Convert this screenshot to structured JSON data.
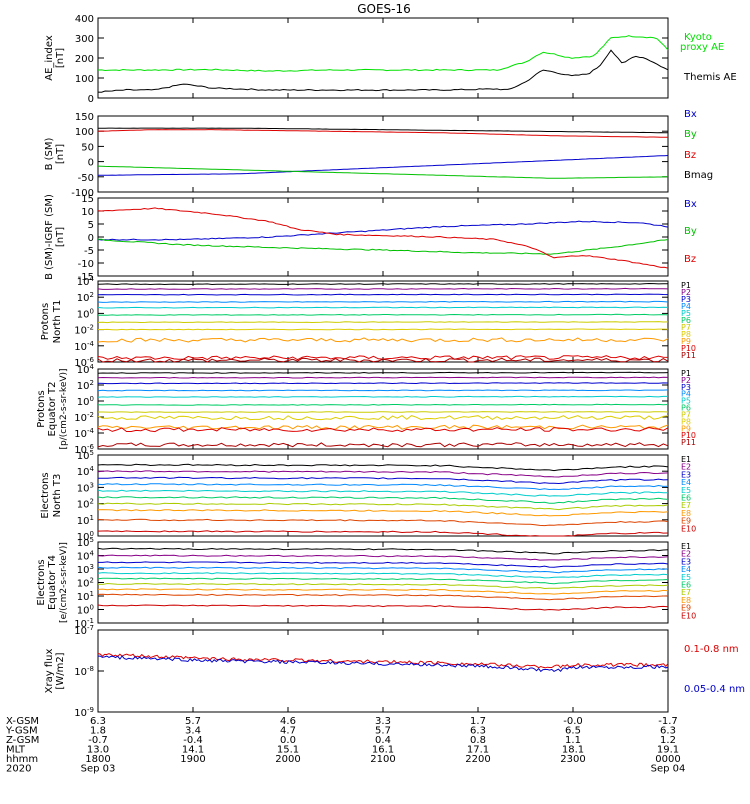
{
  "chart_data": {
    "type": "line",
    "title": "GOES-16",
    "x": [
      1800,
      1900,
      2000,
      2100,
      2200,
      2300,
      0
    ],
    "panels": [
      {
        "ylabel": "AE_index [nT]",
        "ylim": [
          0,
          400
        ],
        "scale": "linear",
        "yticks": [
          "0",
          "100",
          "200",
          "300",
          "400"
        ],
        "series": [
          {
            "name": "Kyoto proxy AE",
            "color": "#00e000",
            "values": [
              [
                0,
                140
              ],
              [
                0.1,
                140
              ],
              [
                0.2,
                142
              ],
              [
                0.3,
                135
              ],
              [
                0.4,
                140
              ],
              [
                0.5,
                140
              ],
              [
                0.6,
                140
              ],
              [
                0.7,
                140
              ],
              [
                0.75,
                180
              ],
              [
                0.78,
                230
              ],
              [
                0.8,
                220
              ],
              [
                0.83,
                200
              ],
              [
                0.87,
                210
              ],
              [
                0.9,
                300
              ],
              [
                0.93,
                310
              ],
              [
                0.96,
                305
              ],
              [
                0.98,
                300
              ],
              [
                1,
                240
              ]
            ]
          },
          {
            "name": "Themis AE",
            "color": "#000000",
            "values": [
              [
                0,
                30
              ],
              [
                0.05,
                40
              ],
              [
                0.1,
                40
              ],
              [
                0.15,
                70
              ],
              [
                0.2,
                50
              ],
              [
                0.3,
                40
              ],
              [
                0.4,
                40
              ],
              [
                0.5,
                40
              ],
              [
                0.6,
                40
              ],
              [
                0.7,
                45
              ],
              [
                0.72,
                40
              ],
              [
                0.75,
                80
              ],
              [
                0.78,
                140
              ],
              [
                0.8,
                130
              ],
              [
                0.83,
                110
              ],
              [
                0.86,
                120
              ],
              [
                0.88,
                160
              ],
              [
                0.9,
                240
              ],
              [
                0.92,
                170
              ],
              [
                0.94,
                210
              ],
              [
                0.96,
                200
              ],
              [
                0.98,
                170
              ],
              [
                1,
                140
              ]
            ]
          }
        ]
      },
      {
        "ylabel": "B (SM) [nT]",
        "ylim": [
          -100,
          150
        ],
        "scale": "linear",
        "yticks": [
          "-100",
          "-50",
          "0",
          "50",
          "100",
          "150"
        ],
        "series": [
          {
            "name": "Bx",
            "color": "#0000cc",
            "values": [
              [
                0,
                -45
              ],
              [
                0.25,
                -40
              ],
              [
                0.5,
                -20
              ],
              [
                0.75,
                0
              ],
              [
                1,
                20
              ]
            ]
          },
          {
            "name": "By",
            "color": "#00c000",
            "values": [
              [
                0,
                -15
              ],
              [
                0.2,
                -25
              ],
              [
                0.4,
                -35
              ],
              [
                0.6,
                -45
              ],
              [
                0.8,
                -55
              ],
              [
                1,
                -50
              ]
            ]
          },
          {
            "name": "Bz",
            "color": "#dd0000",
            "values": [
              [
                0,
                100
              ],
              [
                0.1,
                105
              ],
              [
                0.2,
                105
              ],
              [
                0.4,
                100
              ],
              [
                0.6,
                95
              ],
              [
                0.8,
                85
              ],
              [
                1,
                80
              ]
            ]
          },
          {
            "name": "Bmag",
            "color": "#000000",
            "values": [
              [
                0,
                110
              ],
              [
                0.25,
                110
              ],
              [
                0.5,
                105
              ],
              [
                0.75,
                100
              ],
              [
                1,
                95
              ]
            ]
          }
        ]
      },
      {
        "ylabel": "B (SM)-IGRF (SM) [nT]",
        "ylim": [
          -15,
          15
        ],
        "scale": "linear",
        "yticks": [
          "-15",
          "-10",
          "-5",
          "0",
          "5",
          "10",
          "15"
        ],
        "series": [
          {
            "name": "Bx",
            "color": "#0000cc",
            "values": [
              [
                0,
                -1
              ],
              [
                0.15,
                -1
              ],
              [
                0.3,
                0
              ],
              [
                0.45,
                2
              ],
              [
                0.6,
                4
              ],
              [
                0.75,
                5
              ],
              [
                0.85,
                6
              ],
              [
                0.95,
                5.5
              ],
              [
                1,
                4
              ]
            ]
          },
          {
            "name": "By",
            "color": "#00c000",
            "values": [
              [
                0,
                -1
              ],
              [
                0.15,
                -3
              ],
              [
                0.3,
                -4
              ],
              [
                0.5,
                -5
              ],
              [
                0.65,
                -6
              ],
              [
                0.8,
                -6.5
              ],
              [
                0.9,
                -4
              ],
              [
                1,
                -1
              ]
            ]
          },
          {
            "name": "Bz",
            "color": "#dd0000",
            "values": [
              [
                0,
                10
              ],
              [
                0.1,
                11
              ],
              [
                0.2,
                9
              ],
              [
                0.3,
                6
              ],
              [
                0.35,
                3
              ],
              [
                0.42,
                1
              ],
              [
                0.6,
                0
              ],
              [
                0.7,
                -1
              ],
              [
                0.76,
                -4
              ],
              [
                0.8,
                -8
              ],
              [
                0.85,
                -7
              ],
              [
                0.92,
                -9
              ],
              [
                1,
                -12
              ]
            ]
          }
        ]
      },
      {
        "ylabel": "Protons North T1",
        "ylim": [
          -6,
          4
        ],
        "scale": "log",
        "yticks": [
          "10-6",
          "10-4",
          "10-2",
          "100",
          "102",
          "104"
        ],
        "channels": [
          "P1",
          "P2",
          "P3",
          "P4",
          "P5",
          "P6",
          "P7",
          "P8",
          "P9",
          "P10",
          "P11"
        ],
        "levels": [
          3.6,
          3.0,
          2.3,
          1.4,
          0.7,
          -0.2,
          -1.1,
          -2.0,
          -3.3,
          -5.5,
          -5.8
        ]
      },
      {
        "ylabel": "Protons Equator T2 [p/(cm2-s-sr-keV)]",
        "ylim": [
          -6,
          4
        ],
        "scale": "log",
        "yticks": [
          "10-6",
          "10-4",
          "10-2",
          "100",
          "102",
          "104"
        ],
        "channels": [
          "P1",
          "P2",
          "P3",
          "P4",
          "P5",
          "P6",
          "P7",
          "P8",
          "P9",
          "P10",
          "P11"
        ],
        "levels": [
          3.5,
          2.9,
          2.2,
          1.3,
          0.5,
          -0.5,
          -1.4,
          -2.1,
          -3.3,
          -3.6,
          -5.5
        ]
      },
      {
        "ylabel": "Electrons North T3",
        "ylim": [
          0,
          5
        ],
        "scale": "log",
        "yticks": [
          "100",
          "101",
          "102",
          "103",
          "104",
          "105"
        ],
        "channels": [
          "E1",
          "E2",
          "E3",
          "E4",
          "E5",
          "E6",
          "E7",
          "E8",
          "E9",
          "E10"
        ],
        "levels": [
          4.4,
          4.0,
          3.6,
          3.2,
          2.8,
          2.4,
          2.0,
          1.6,
          1.0,
          0.3
        ]
      },
      {
        "ylabel": "Electrons Equator T4 [e/(cm2-s-sr-keV)]",
        "ylim": [
          -1,
          5
        ],
        "scale": "log",
        "yticks": [
          "10-1",
          "100",
          "101",
          "102",
          "103",
          "104",
          "105"
        ],
        "channels": [
          "E1",
          "E2",
          "E3",
          "E4",
          "E5",
          "E6",
          "E7",
          "E8",
          "E9",
          "E10"
        ],
        "levels": [
          4.5,
          4.0,
          3.5,
          3.1,
          2.7,
          2.3,
          1.9,
          1.5,
          1.1,
          0.3
        ]
      },
      {
        "ylabel": "Xray flux [W/m2]",
        "ylim": [
          -9,
          -7
        ],
        "scale": "log",
        "yticks": [
          "10-9",
          "10-8",
          "10-7"
        ],
        "series": [
          {
            "name": "0.1-0.8 nm",
            "color": "#dd0000",
            "values": [
              [
                0,
                -7.6
              ],
              [
                0.2,
                -7.7
              ],
              [
                0.4,
                -7.75
              ],
              [
                0.6,
                -7.8
              ],
              [
                0.7,
                -7.85
              ],
              [
                0.8,
                -7.9
              ],
              [
                0.85,
                -7.85
              ],
              [
                1,
                -7.85
              ]
            ]
          },
          {
            "name": "0.05-0.4 nm",
            "color": "#0000cc",
            "values": [
              [
                0,
                -7.65
              ],
              [
                0.2,
                -7.75
              ],
              [
                0.4,
                -7.8
              ],
              [
                0.6,
                -7.85
              ],
              [
                0.7,
                -7.9
              ],
              [
                0.8,
                -8.0
              ],
              [
                0.85,
                -7.9
              ],
              [
                1,
                -7.9
              ]
            ]
          }
        ]
      }
    ],
    "xaxis_table": {
      "rows": [
        {
          "label": "X-GSM",
          "values": [
            "6.3",
            "5.7",
            "4.6",
            "3.3",
            "1.7",
            "-0.0",
            "-1.7"
          ]
        },
        {
          "label": "Y-GSM",
          "values": [
            "1.8",
            "3.4",
            "4.7",
            "5.7",
            "6.3",
            "6.5",
            "6.3"
          ]
        },
        {
          "label": "Z-GSM",
          "values": [
            "-0.7",
            "-0.4",
            "0.0",
            "0.4",
            "0.8",
            "1.1",
            "1.2"
          ]
        },
        {
          "label": "MLT",
          "values": [
            "13.0",
            "14.1",
            "15.1",
            "16.1",
            "17.1",
            "18.1",
            "19.1"
          ]
        },
        {
          "label": "hhmm",
          "values": [
            "1800",
            "1900",
            "2000",
            "2100",
            "2200",
            "2300",
            "0000"
          ]
        },
        {
          "label": "2020",
          "values": [
            "Sep 03",
            "",
            "",
            "",
            "",
            "",
            "Sep 04"
          ]
        }
      ]
    }
  },
  "legend": {
    "ae": [
      "Kyoto",
      "proxy AE",
      "Themis AE"
    ],
    "b": [
      "Bx",
      "By",
      "Bz",
      "Bmag"
    ],
    "db": [
      "Bx",
      "By",
      "Bz"
    ],
    "xray": [
      "0.1-0.8 nm",
      "0.05-0.4 nm"
    ]
  },
  "colors": {
    "black": "#000000",
    "red": "#dd0000",
    "green": "#00c000",
    "blue": "#0000cc",
    "ae_green": "#00e000",
    "proton_channels": [
      "#000000",
      "#880088",
      "#0000cc",
      "#0088ff",
      "#00cccc",
      "#00cc66",
      "#cccc00",
      "#ddcc00",
      "#ff9900",
      "#dd0000",
      "#aa0000"
    ],
    "electron_channels": [
      "#000000",
      "#880088",
      "#0000cc",
      "#0088ff",
      "#00cccc",
      "#00cc66",
      "#aacc00",
      "#ff9900",
      "#dd4400",
      "#cc0000"
    ]
  }
}
